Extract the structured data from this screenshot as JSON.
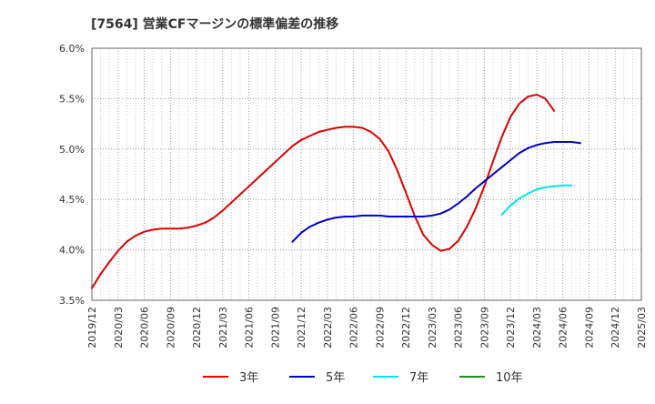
{
  "chart_data": {
    "type": "line",
    "title": "[7564]  営業CFマージンの標準偏差の推移",
    "xlabel": "",
    "ylabel": "",
    "x_ticks": [
      "2019/12",
      "2020/03",
      "2020/06",
      "2020/09",
      "2020/12",
      "2021/03",
      "2021/06",
      "2021/09",
      "2021/12",
      "2022/03",
      "2022/06",
      "2022/09",
      "2022/12",
      "2023/03",
      "2023/06",
      "2023/09",
      "2023/12",
      "2024/03",
      "2024/06",
      "2024/09",
      "2024/12",
      "2025/03"
    ],
    "y_ticks": [
      "3.5%",
      "4.0%",
      "4.5%",
      "5.0%",
      "5.5%",
      "6.0%"
    ],
    "ylim": [
      3.5,
      6.0
    ],
    "grid": true,
    "legend_position": "bottom",
    "series": [
      {
        "name": "3年",
        "color": "#dd0000",
        "points": [
          [
            "2019/12",
            3.62
          ],
          [
            "2020/01",
            3.76
          ],
          [
            "2020/02",
            3.88
          ],
          [
            "2020/03",
            3.99
          ],
          [
            "2020/04",
            4.08
          ],
          [
            "2020/05",
            4.14
          ],
          [
            "2020/06",
            4.18
          ],
          [
            "2020/07",
            4.2
          ],
          [
            "2020/08",
            4.21
          ],
          [
            "2020/09",
            4.21
          ],
          [
            "2020/10",
            4.21
          ],
          [
            "2020/11",
            4.22
          ],
          [
            "2020/12",
            4.24
          ],
          [
            "2021/01",
            4.27
          ],
          [
            "2021/02",
            4.32
          ],
          [
            "2021/03",
            4.39
          ],
          [
            "2021/04",
            4.47
          ],
          [
            "2021/05",
            4.55
          ],
          [
            "2021/06",
            4.63
          ],
          [
            "2021/07",
            4.71
          ],
          [
            "2021/08",
            4.79
          ],
          [
            "2021/09",
            4.87
          ],
          [
            "2021/10",
            4.95
          ],
          [
            "2021/11",
            5.03
          ],
          [
            "2021/12",
            5.09
          ],
          [
            "2022/01",
            5.13
          ],
          [
            "2022/02",
            5.17
          ],
          [
            "2022/03",
            5.19
          ],
          [
            "2022/04",
            5.21
          ],
          [
            "2022/05",
            5.22
          ],
          [
            "2022/06",
            5.22
          ],
          [
            "2022/07",
            5.21
          ],
          [
            "2022/08",
            5.17
          ],
          [
            "2022/09",
            5.1
          ],
          [
            "2022/10",
            4.98
          ],
          [
            "2022/11",
            4.79
          ],
          [
            "2022/12",
            4.57
          ],
          [
            "2023/01",
            4.34
          ],
          [
            "2023/02",
            4.15
          ],
          [
            "2023/03",
            4.05
          ],
          [
            "2023/04",
            3.99
          ],
          [
            "2023/05",
            4.01
          ],
          [
            "2023/06",
            4.09
          ],
          [
            "2023/07",
            4.23
          ],
          [
            "2023/08",
            4.41
          ],
          [
            "2023/09",
            4.63
          ],
          [
            "2023/10",
            4.88
          ],
          [
            "2023/11",
            5.12
          ],
          [
            "2023/12",
            5.32
          ],
          [
            "2024/01",
            5.45
          ],
          [
            "2024/02",
            5.52
          ],
          [
            "2024/03",
            5.54
          ],
          [
            "2024/04",
            5.5
          ],
          [
            "2024/05",
            5.38
          ]
        ]
      },
      {
        "name": "5年",
        "color": "#0000cc",
        "points": [
          [
            "2021/11",
            4.08
          ],
          [
            "2021/12",
            4.17
          ],
          [
            "2022/01",
            4.23
          ],
          [
            "2022/02",
            4.27
          ],
          [
            "2022/03",
            4.3
          ],
          [
            "2022/04",
            4.32
          ],
          [
            "2022/05",
            4.33
          ],
          [
            "2022/06",
            4.33
          ],
          [
            "2022/07",
            4.34
          ],
          [
            "2022/08",
            4.34
          ],
          [
            "2022/09",
            4.34
          ],
          [
            "2022/10",
            4.33
          ],
          [
            "2022/11",
            4.33
          ],
          [
            "2022/12",
            4.33
          ],
          [
            "2023/01",
            4.33
          ],
          [
            "2023/02",
            4.33
          ],
          [
            "2023/03",
            4.34
          ],
          [
            "2023/04",
            4.36
          ],
          [
            "2023/05",
            4.4
          ],
          [
            "2023/06",
            4.46
          ],
          [
            "2023/07",
            4.53
          ],
          [
            "2023/08",
            4.61
          ],
          [
            "2023/09",
            4.68
          ],
          [
            "2023/10",
            4.75
          ],
          [
            "2023/11",
            4.82
          ],
          [
            "2023/12",
            4.89
          ],
          [
            "2024/01",
            4.96
          ],
          [
            "2024/02",
            5.01
          ],
          [
            "2024/03",
            5.04
          ],
          [
            "2024/04",
            5.06
          ],
          [
            "2024/05",
            5.07
          ],
          [
            "2024/06",
            5.07
          ],
          [
            "2024/07",
            5.07
          ],
          [
            "2024/08",
            5.06
          ]
        ]
      },
      {
        "name": "7年",
        "color": "#00e5ee",
        "points": [
          [
            "2023/11",
            4.35
          ],
          [
            "2023/12",
            4.44
          ],
          [
            "2024/01",
            4.51
          ],
          [
            "2024/02",
            4.56
          ],
          [
            "2024/03",
            4.6
          ],
          [
            "2024/04",
            4.62
          ],
          [
            "2024/05",
            4.63
          ],
          [
            "2024/06",
            4.64
          ],
          [
            "2024/07",
            4.64
          ]
        ]
      },
      {
        "name": "10年",
        "color": "#228b22",
        "points": []
      }
    ]
  }
}
